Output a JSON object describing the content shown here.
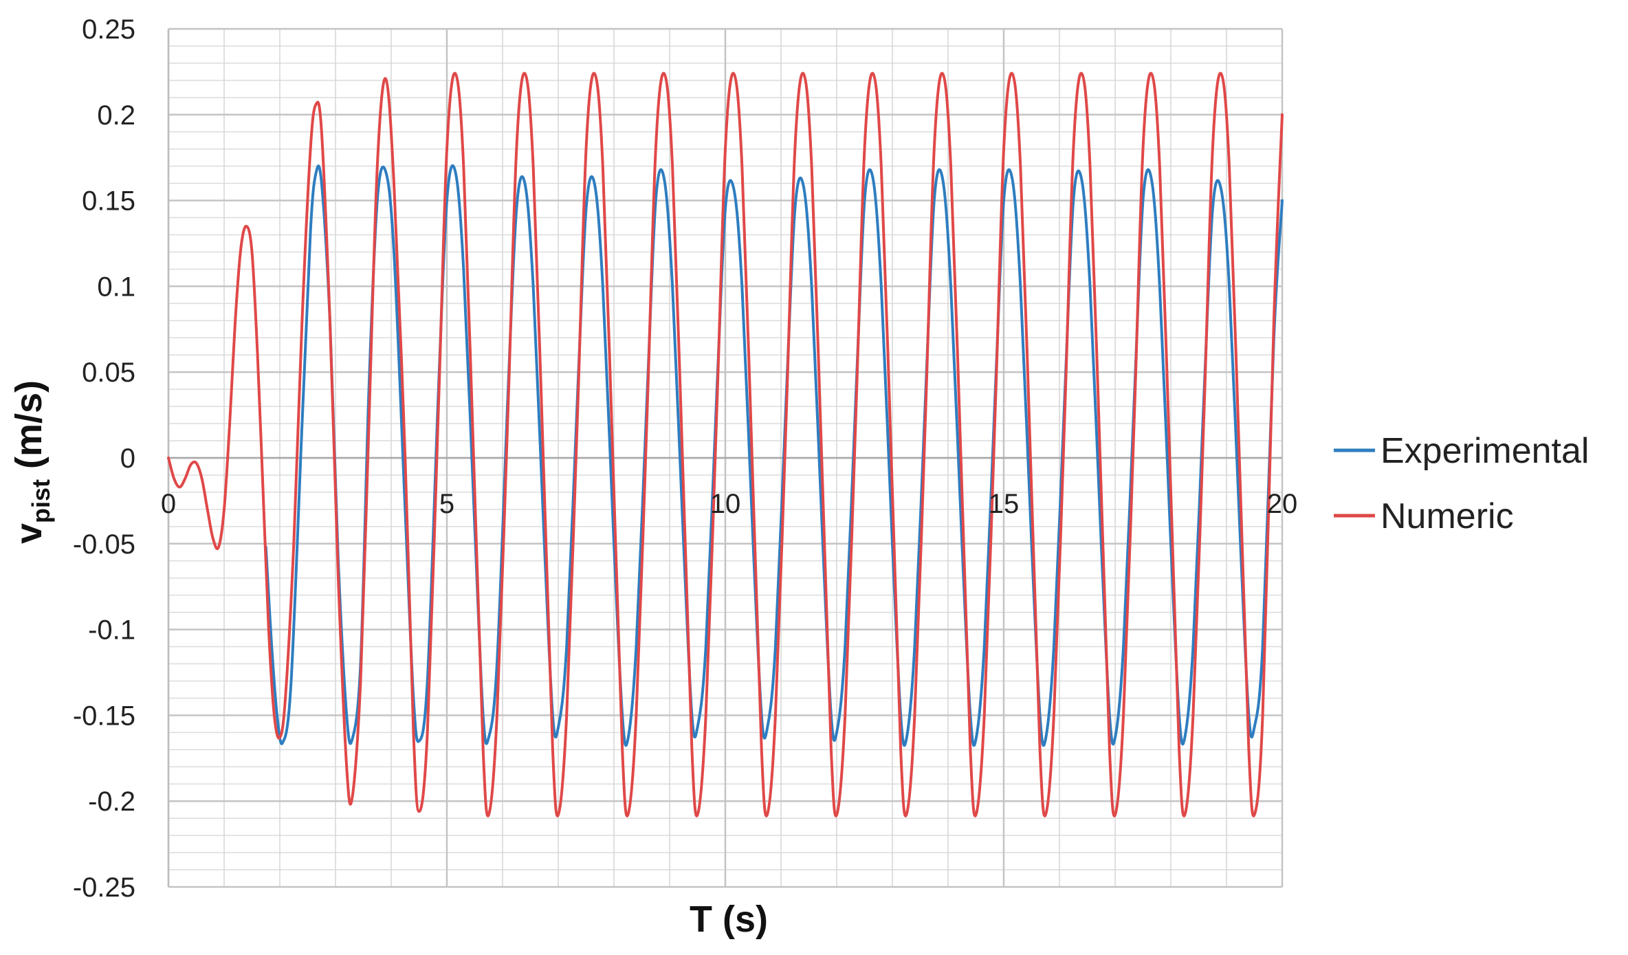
{
  "chart_data": {
    "type": "line",
    "xlabel": "T (s)",
    "ylabel": "v",
    "ylabel_sub": "pist",
    "ylabel_unit": " (m/s)",
    "xlim": [
      0,
      20
    ],
    "ylim": [
      -0.25,
      0.25
    ],
    "x_ticks": [
      "0",
      "5",
      "10",
      "15",
      "20"
    ],
    "y_ticks": [
      "0.25",
      "0.2",
      "0.15",
      "0.1",
      "0.05",
      "0",
      "-0.05",
      "-0.1",
      "-0.15",
      "-0.2",
      "-0.25"
    ],
    "grid": true,
    "legend_position": "right",
    "series": [
      {
        "name": "Experimental",
        "color": "#2E7DC0",
        "points": [
          [
            1.75,
            -0.052
          ],
          [
            1.85,
            -0.108
          ],
          [
            1.95,
            -0.15
          ],
          [
            2.05,
            -0.166
          ],
          [
            2.2,
            -0.132
          ],
          [
            2.4,
            0.02
          ],
          [
            2.55,
            0.132
          ],
          [
            2.65,
            0.166
          ],
          [
            2.75,
            0.16
          ],
          [
            2.9,
            0.08
          ],
          [
            3.05,
            -0.06
          ],
          [
            3.2,
            -0.15
          ],
          [
            3.3,
            -0.164
          ],
          [
            3.45,
            -0.12
          ],
          [
            3.6,
            0.04
          ],
          [
            3.75,
            0.15
          ],
          [
            3.9,
            0.167
          ],
          [
            4.05,
            0.12
          ],
          [
            4.25,
            -0.03
          ],
          [
            4.4,
            -0.14
          ],
          [
            4.5,
            -0.165
          ],
          [
            4.65,
            -0.13
          ],
          [
            4.85,
            0.04
          ],
          [
            5.0,
            0.15
          ],
          [
            5.15,
            0.167
          ],
          [
            5.3,
            0.11
          ],
          [
            5.5,
            -0.04
          ],
          [
            5.65,
            -0.15
          ],
          [
            5.75,
            -0.163
          ],
          [
            5.9,
            -0.12
          ],
          [
            6.1,
            0.04
          ],
          [
            6.25,
            0.145
          ],
          [
            6.4,
            0.16
          ],
          [
            6.55,
            0.1
          ],
          [
            6.75,
            -0.05
          ],
          [
            6.9,
            -0.15
          ],
          [
            7.0,
            -0.157
          ],
          [
            7.15,
            -0.11
          ],
          [
            7.35,
            0.04
          ],
          [
            7.5,
            0.145
          ],
          [
            7.65,
            0.16
          ],
          [
            7.8,
            0.1
          ],
          [
            8.0,
            -0.05
          ],
          [
            8.15,
            -0.15
          ],
          [
            8.25,
            -0.164
          ],
          [
            8.4,
            -0.11
          ],
          [
            8.6,
            0.04
          ],
          [
            8.75,
            0.15
          ],
          [
            8.9,
            0.163
          ],
          [
            9.05,
            0.1
          ],
          [
            9.25,
            -0.05
          ],
          [
            9.4,
            -0.15
          ],
          [
            9.5,
            -0.157
          ],
          [
            9.65,
            -0.11
          ],
          [
            9.85,
            0.04
          ],
          [
            10.0,
            0.145
          ],
          [
            10.15,
            0.157
          ],
          [
            10.3,
            0.1
          ],
          [
            10.5,
            -0.05
          ],
          [
            10.65,
            -0.15
          ],
          [
            10.75,
            -0.158
          ],
          [
            10.9,
            -0.11
          ],
          [
            11.1,
            0.04
          ],
          [
            11.25,
            0.145
          ],
          [
            11.4,
            0.159
          ],
          [
            11.55,
            0.1
          ],
          [
            11.75,
            -0.05
          ],
          [
            11.9,
            -0.15
          ],
          [
            12.0,
            -0.16
          ],
          [
            12.15,
            -0.11
          ],
          [
            12.35,
            0.04
          ],
          [
            12.5,
            0.15
          ],
          [
            12.65,
            0.163
          ],
          [
            12.8,
            0.1
          ],
          [
            13.0,
            -0.05
          ],
          [
            13.15,
            -0.15
          ],
          [
            13.25,
            -0.164
          ],
          [
            13.4,
            -0.11
          ],
          [
            13.6,
            0.04
          ],
          [
            13.75,
            0.15
          ],
          [
            13.9,
            0.163
          ],
          [
            14.05,
            0.1
          ],
          [
            14.25,
            -0.05
          ],
          [
            14.4,
            -0.15
          ],
          [
            14.5,
            -0.164
          ],
          [
            14.65,
            -0.11
          ],
          [
            14.85,
            0.04
          ],
          [
            15.0,
            0.15
          ],
          [
            15.15,
            0.163
          ],
          [
            15.3,
            0.1
          ],
          [
            15.5,
            -0.05
          ],
          [
            15.65,
            -0.15
          ],
          [
            15.75,
            -0.164
          ],
          [
            15.9,
            -0.11
          ],
          [
            16.1,
            0.04
          ],
          [
            16.25,
            0.15
          ],
          [
            16.4,
            0.162
          ],
          [
            16.55,
            0.1
          ],
          [
            16.75,
            -0.05
          ],
          [
            16.9,
            -0.15
          ],
          [
            17.0,
            -0.163
          ],
          [
            17.15,
            -0.11
          ],
          [
            17.35,
            0.04
          ],
          [
            17.5,
            0.15
          ],
          [
            17.65,
            0.163
          ],
          [
            17.8,
            0.1
          ],
          [
            18.0,
            -0.05
          ],
          [
            18.15,
            -0.15
          ],
          [
            18.25,
            -0.163
          ],
          [
            18.4,
            -0.11
          ],
          [
            18.6,
            0.04
          ],
          [
            18.75,
            0.145
          ],
          [
            18.9,
            0.157
          ],
          [
            19.05,
            0.1
          ],
          [
            19.25,
            -0.05
          ],
          [
            19.4,
            -0.15
          ],
          [
            19.5,
            -0.157
          ],
          [
            19.65,
            -0.11
          ],
          [
            19.85,
            0.07
          ],
          [
            20.0,
            0.15
          ]
        ]
      },
      {
        "name": "Numeric",
        "color": "#E04848",
        "points": [
          [
            0.0,
            0.0
          ],
          [
            0.1,
            -0.012
          ],
          [
            0.2,
            -0.017
          ],
          [
            0.3,
            -0.012
          ],
          [
            0.4,
            -0.004
          ],
          [
            0.5,
            -0.003
          ],
          [
            0.6,
            -0.012
          ],
          [
            0.7,
            -0.03
          ],
          [
            0.8,
            -0.047
          ],
          [
            0.9,
            -0.052
          ],
          [
            1.0,
            -0.03
          ],
          [
            1.1,
            0.02
          ],
          [
            1.2,
            0.08
          ],
          [
            1.3,
            0.122
          ],
          [
            1.4,
            0.135
          ],
          [
            1.5,
            0.12
          ],
          [
            1.6,
            0.06
          ],
          [
            1.7,
            -0.02
          ],
          [
            1.8,
            -0.1
          ],
          [
            1.9,
            -0.15
          ],
          [
            2.0,
            -0.163
          ],
          [
            2.1,
            -0.14
          ],
          [
            2.25,
            -0.05
          ],
          [
            2.4,
            0.08
          ],
          [
            2.55,
            0.18
          ],
          [
            2.65,
            0.206
          ],
          [
            2.75,
            0.19
          ],
          [
            2.9,
            0.08
          ],
          [
            3.05,
            -0.07
          ],
          [
            3.2,
            -0.18
          ],
          [
            3.3,
            -0.198
          ],
          [
            3.45,
            -0.13
          ],
          [
            3.6,
            0.02
          ],
          [
            3.75,
            0.17
          ],
          [
            3.9,
            0.221
          ],
          [
            4.05,
            0.16
          ],
          [
            4.25,
            0.0
          ],
          [
            4.4,
            -0.16
          ],
          [
            4.5,
            -0.206
          ],
          [
            4.65,
            -0.16
          ],
          [
            4.85,
            0.03
          ],
          [
            5.0,
            0.18
          ],
          [
            5.15,
            0.224
          ],
          [
            5.3,
            0.17
          ],
          [
            5.5,
            -0.02
          ],
          [
            5.65,
            -0.17
          ],
          [
            5.75,
            -0.208
          ],
          [
            5.9,
            -0.15
          ],
          [
            6.1,
            0.03
          ],
          [
            6.25,
            0.18
          ],
          [
            6.4,
            0.224
          ],
          [
            6.55,
            0.17
          ],
          [
            6.75,
            -0.02
          ],
          [
            6.9,
            -0.17
          ],
          [
            7.0,
            -0.208
          ],
          [
            7.15,
            -0.15
          ],
          [
            7.35,
            0.03
          ],
          [
            7.5,
            0.18
          ],
          [
            7.65,
            0.224
          ],
          [
            7.8,
            0.17
          ],
          [
            8.0,
            -0.02
          ],
          [
            8.15,
            -0.17
          ],
          [
            8.25,
            -0.208
          ],
          [
            8.4,
            -0.15
          ],
          [
            8.6,
            0.03
          ],
          [
            8.75,
            0.18
          ],
          [
            8.9,
            0.224
          ],
          [
            9.05,
            0.17
          ],
          [
            9.25,
            -0.02
          ],
          [
            9.4,
            -0.17
          ],
          [
            9.5,
            -0.208
          ],
          [
            9.65,
            -0.15
          ],
          [
            9.85,
            0.03
          ],
          [
            10.0,
            0.18
          ],
          [
            10.15,
            0.224
          ],
          [
            10.3,
            0.17
          ],
          [
            10.5,
            -0.02
          ],
          [
            10.65,
            -0.17
          ],
          [
            10.75,
            -0.208
          ],
          [
            10.9,
            -0.15
          ],
          [
            11.1,
            0.03
          ],
          [
            11.25,
            0.18
          ],
          [
            11.4,
            0.224
          ],
          [
            11.55,
            0.17
          ],
          [
            11.75,
            -0.02
          ],
          [
            11.9,
            -0.17
          ],
          [
            12.0,
            -0.208
          ],
          [
            12.15,
            -0.15
          ],
          [
            12.35,
            0.03
          ],
          [
            12.5,
            0.18
          ],
          [
            12.65,
            0.224
          ],
          [
            12.8,
            0.17
          ],
          [
            13.0,
            -0.02
          ],
          [
            13.15,
            -0.17
          ],
          [
            13.25,
            -0.208
          ],
          [
            13.4,
            -0.15
          ],
          [
            13.6,
            0.03
          ],
          [
            13.75,
            0.18
          ],
          [
            13.9,
            0.224
          ],
          [
            14.05,
            0.17
          ],
          [
            14.25,
            -0.02
          ],
          [
            14.4,
            -0.17
          ],
          [
            14.5,
            -0.208
          ],
          [
            14.65,
            -0.15
          ],
          [
            14.85,
            0.03
          ],
          [
            15.0,
            0.18
          ],
          [
            15.15,
            0.224
          ],
          [
            15.3,
            0.17
          ],
          [
            15.5,
            -0.02
          ],
          [
            15.65,
            -0.17
          ],
          [
            15.75,
            -0.208
          ],
          [
            15.9,
            -0.15
          ],
          [
            16.1,
            0.03
          ],
          [
            16.25,
            0.18
          ],
          [
            16.4,
            0.224
          ],
          [
            16.55,
            0.17
          ],
          [
            16.75,
            -0.02
          ],
          [
            16.9,
            -0.17
          ],
          [
            17.0,
            -0.208
          ],
          [
            17.15,
            -0.15
          ],
          [
            17.35,
            0.03
          ],
          [
            17.5,
            0.18
          ],
          [
            17.65,
            0.224
          ],
          [
            17.8,
            0.17
          ],
          [
            18.0,
            -0.02
          ],
          [
            18.15,
            -0.17
          ],
          [
            18.25,
            -0.208
          ],
          [
            18.4,
            -0.15
          ],
          [
            18.6,
            0.03
          ],
          [
            18.75,
            0.18
          ],
          [
            18.9,
            0.224
          ],
          [
            19.05,
            0.17
          ],
          [
            19.25,
            -0.02
          ],
          [
            19.4,
            -0.17
          ],
          [
            19.5,
            -0.208
          ],
          [
            19.65,
            -0.15
          ],
          [
            19.85,
            0.08
          ],
          [
            20.0,
            0.2
          ]
        ]
      }
    ]
  }
}
